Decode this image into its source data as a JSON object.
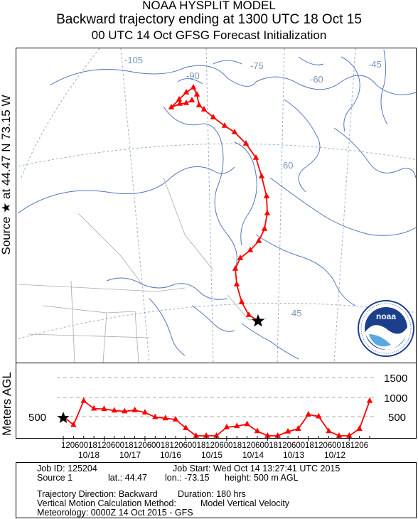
{
  "header": {
    "line1": "NOAA HYSPLIT MODEL",
    "line2": "Backward trajectory ending at 1300 UTC 18 Oct 15",
    "line3": "00 UTC 14 Oct    GFSG  Forecast Initialization"
  },
  "side_label": "Source ★ at    44.47 N    73.15 W",
  "map": {
    "lon_labels": [
      "-105",
      "-90",
      "-75",
      "-60",
      "-45"
    ],
    "lat_labels": [
      "60",
      "45"
    ],
    "logo_text": "noaa",
    "logo_ring_text": "NATIONAL OCEANIC AND ATMOSPHERIC ADMINISTRATION · U.S. DEPARTMENT OF COMMERCE",
    "trajectory_color": "#ff0000",
    "source_marker": "star"
  },
  "chart_data": {
    "type": "line",
    "title": "",
    "ylabel": "Meters AGL",
    "y_ticks_right": [
      "1500",
      "1000",
      "500"
    ],
    "y_tick_left": "500",
    "ylim": [
      0,
      1500
    ],
    "x_hour_labels": "12060018120600181206001812060018120600181206001812060018120600181206",
    "x_date_labels": [
      "10/18",
      "10/17",
      "10/16",
      "10/15",
      "10/14",
      "10/13",
      "10/12"
    ],
    "series": [
      {
        "name": "",
        "color": "#ff0000",
        "hours_back": [
          0,
          6,
          12,
          18,
          24,
          30,
          36,
          42,
          48,
          54,
          60,
          66,
          72,
          78,
          84,
          90,
          96,
          102,
          108,
          114,
          120,
          126,
          132,
          138,
          144,
          150,
          156,
          162,
          168,
          174,
          180
        ],
        "height_m": [
          500,
          280,
          900,
          700,
          690,
          650,
          630,
          660,
          600,
          480,
          450,
          420,
          200,
          0,
          0,
          0,
          220,
          250,
          300,
          120,
          0,
          0,
          110,
          180,
          550,
          500,
          120,
          0,
          0,
          180,
          900
        ]
      }
    ]
  },
  "footer": {
    "job_id": "Job ID: 125204",
    "job_start": "Job Start: Wed Oct 14 13:27:41 UTC 2015",
    "source": "Source 1",
    "lat": "lat.: 44.47",
    "lon": "lon.: -73.15",
    "height": "height: 500 m AGL",
    "direction": "Trajectory Direction: Backward",
    "duration": "Duration: 180 hrs",
    "vertical_method": "Vertical Motion Calculation Method:",
    "vertical_value": "Model Vertical Velocity",
    "meteorology": "Meteorology: 0000Z 14 Oct 2015 - GFS"
  }
}
